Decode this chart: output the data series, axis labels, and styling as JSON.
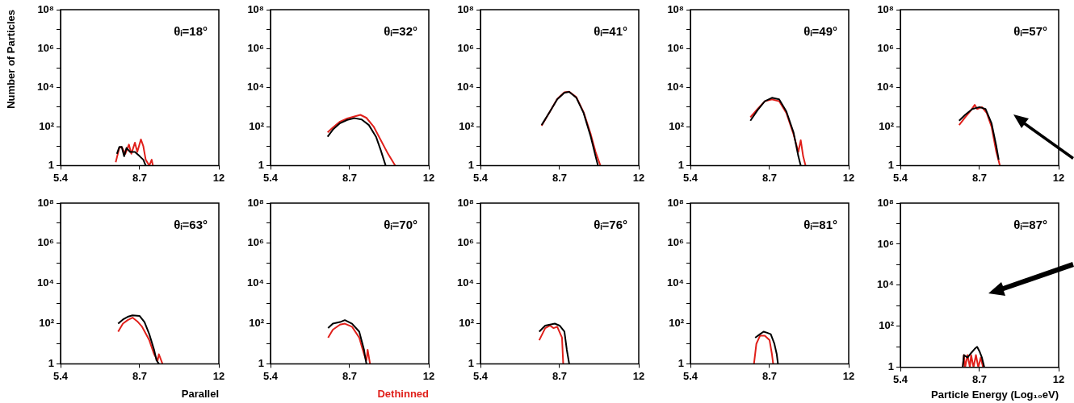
{
  "chart_data": [
    {
      "type": "line",
      "ylabel": "Number of Particles",
      "annotations": [
        "θᵢ=18°"
      ],
      "log": "y",
      "xlim": [
        5.4,
        12
      ],
      "xticks": [
        5.4,
        8.7,
        12
      ],
      "ylim": [
        1,
        100000000
      ],
      "yticks": [
        {
          "value": 1,
          "label": "1"
        },
        {
          "value": 10,
          "label": null
        },
        {
          "value": 100,
          "label": "10²"
        },
        {
          "value": 1000,
          "label": null
        },
        {
          "value": 10000,
          "label": "10⁴"
        },
        {
          "value": 100000,
          "label": null
        },
        {
          "value": 1000000,
          "label": "10⁶"
        },
        {
          "value": 10000000,
          "label": null
        },
        {
          "value": 100000000,
          "label": "10⁸"
        }
      ],
      "series": [
        {
          "color": "#000000",
          "x": [
            7.75,
            7.85,
            7.95,
            8.05,
            8.15,
            8.3,
            8.5,
            8.7,
            8.85,
            8.95
          ],
          "values": [
            4,
            9,
            9,
            3,
            8,
            5,
            5,
            3,
            2,
            1
          ]
        },
        {
          "color": "#e0201b",
          "x": [
            7.7,
            7.85,
            7.95,
            8.1,
            8.25,
            8.35,
            8.5,
            8.6,
            8.75,
            8.85,
            8.95,
            9.1,
            9.2,
            9.25
          ],
          "values": [
            1.5,
            8,
            9,
            4,
            12,
            4,
            15,
            5,
            22,
            10,
            2,
            1,
            2,
            1
          ]
        }
      ]
    },
    {
      "type": "line",
      "annotations": [
        "θᵢ=32°"
      ],
      "log": "y",
      "xlim": [
        5.4,
        12
      ],
      "xticks": [
        5.4,
        8.7,
        12
      ],
      "ylim": [
        1,
        100000000
      ],
      "yticks": [
        {
          "value": 1,
          "label": "1"
        },
        {
          "value": 10,
          "label": null
        },
        {
          "value": 100,
          "label": "10²"
        },
        {
          "value": 1000,
          "label": null
        },
        {
          "value": 10000,
          "label": "10⁴"
        },
        {
          "value": 100000,
          "label": null
        },
        {
          "value": 1000000,
          "label": "10⁶"
        },
        {
          "value": 10000000,
          "label": null
        },
        {
          "value": 100000000,
          "label": "10⁸"
        }
      ],
      "series": [
        {
          "color": "#000000",
          "x": [
            7.78,
            8.0,
            8.3,
            8.6,
            8.9,
            9.2,
            9.5,
            9.8,
            10.0,
            10.2
          ],
          "values": [
            30,
            70,
            150,
            220,
            270,
            230,
            120,
            30,
            6,
            1
          ]
        },
        {
          "color": "#e0201b",
          "x": [
            7.78,
            8.0,
            8.3,
            8.6,
            8.9,
            9.15,
            9.4,
            9.7,
            10.0,
            10.3,
            10.6
          ],
          "values": [
            50,
            90,
            180,
            260,
            330,
            400,
            280,
            100,
            20,
            4,
            1
          ]
        }
      ]
    },
    {
      "type": "line",
      "annotations": [
        "θᵢ=41°"
      ],
      "log": "y",
      "xlim": [
        5.4,
        12
      ],
      "xticks": [
        5.4,
        8.7,
        12
      ],
      "ylim": [
        1,
        100000000
      ],
      "yticks": [
        {
          "value": 1,
          "label": "1"
        },
        {
          "value": 10,
          "label": null
        },
        {
          "value": 100,
          "label": "10²"
        },
        {
          "value": 1000,
          "label": null
        },
        {
          "value": 10000,
          "label": "10⁴"
        },
        {
          "value": 100000,
          "label": null
        },
        {
          "value": 1000000,
          "label": "10⁶"
        },
        {
          "value": 10000000,
          "label": null
        },
        {
          "value": 100000000,
          "label": "10⁸"
        }
      ],
      "series": [
        {
          "color": "#000000",
          "x": [
            7.95,
            8.3,
            8.6,
            8.9,
            9.1,
            9.4,
            9.7,
            10.0,
            10.2,
            10.3
          ],
          "values": [
            120,
            600,
            2500,
            5500,
            6000,
            3000,
            500,
            30,
            3,
            1
          ]
        },
        {
          "color": "#e0201b",
          "x": [
            7.95,
            8.3,
            8.6,
            8.9,
            9.1,
            9.4,
            9.7,
            10.0,
            10.2,
            10.4
          ],
          "values": [
            110,
            600,
            2600,
            5800,
            6200,
            3200,
            550,
            40,
            5,
            1
          ]
        }
      ]
    },
    {
      "type": "line",
      "annotations": [
        "θᵢ=49°"
      ],
      "log": "y",
      "xlim": [
        5.4,
        12
      ],
      "xticks": [
        5.4,
        8.7,
        12
      ],
      "ylim": [
        1,
        100000000
      ],
      "yticks": [
        {
          "value": 1,
          "label": "1"
        },
        {
          "value": 10,
          "label": null
        },
        {
          "value": 100,
          "label": "10²"
        },
        {
          "value": 1000,
          "label": null
        },
        {
          "value": 10000,
          "label": "10⁴"
        },
        {
          "value": 100000,
          "label": null
        },
        {
          "value": 1000000,
          "label": "10⁶"
        },
        {
          "value": 10000000,
          "label": null
        },
        {
          "value": 100000000,
          "label": "10⁸"
        }
      ],
      "series": [
        {
          "color": "#000000",
          "x": [
            7.9,
            8.2,
            8.5,
            8.8,
            9.1,
            9.4,
            9.7,
            9.9,
            10.0
          ],
          "values": [
            200,
            700,
            2000,
            3000,
            2500,
            600,
            50,
            3,
            1
          ]
        },
        {
          "color": "#e0201b",
          "x": [
            7.9,
            8.2,
            8.5,
            8.8,
            9.1,
            9.4,
            9.7,
            9.9,
            10.0,
            10.1,
            10.2
          ],
          "values": [
            300,
            800,
            2000,
            2500,
            2000,
            500,
            40,
            5,
            20,
            3,
            1
          ]
        }
      ]
    },
    {
      "type": "line",
      "annotations": [
        "θᵢ=57°"
      ],
      "log": "y",
      "xlim": [
        5.4,
        12
      ],
      "xticks": [
        5.4,
        8.7,
        12
      ],
      "ylim": [
        1,
        100000000
      ],
      "yticks": [
        {
          "value": 1,
          "label": "1"
        },
        {
          "value": 10,
          "label": null
        },
        {
          "value": 100,
          "label": "10²"
        },
        {
          "value": 1000,
          "label": null
        },
        {
          "value": 10000,
          "label": "10⁴"
        },
        {
          "value": 100000,
          "label": null
        },
        {
          "value": 1000000,
          "label": "10⁶"
        },
        {
          "value": 10000000,
          "label": null
        },
        {
          "value": 100000000,
          "label": "10⁸"
        }
      ],
      "series": [
        {
          "color": "#000000",
          "x": [
            7.85,
            8.1,
            8.4,
            8.7,
            8.95,
            9.2,
            9.4,
            9.5
          ],
          "values": [
            200,
            400,
            800,
            1000,
            800,
            150,
            10,
            2
          ]
        },
        {
          "color": "#e0201b",
          "x": [
            7.85,
            8.1,
            8.35,
            8.5,
            8.6,
            8.8,
            9.0,
            9.2,
            9.4,
            9.55
          ],
          "values": [
            120,
            300,
            700,
            1300,
            800,
            1000,
            500,
            100,
            5,
            1
          ]
        }
      ]
    },
    {
      "type": "line",
      "annotations": [
        "θᵢ=63°"
      ],
      "legend": "bottom right",
      "log": "y",
      "xlim": [
        5.4,
        12
      ],
      "xticks": [
        5.4,
        8.7,
        12
      ],
      "ylim": [
        1,
        100000000
      ],
      "yticks": [
        {
          "value": 1,
          "label": "1"
        },
        {
          "value": 10,
          "label": null
        },
        {
          "value": 100,
          "label": "10²"
        },
        {
          "value": 1000,
          "label": null
        },
        {
          "value": 10000,
          "label": "10⁴"
        },
        {
          "value": 100000,
          "label": null
        },
        {
          "value": 1000000,
          "label": "10⁶"
        },
        {
          "value": 10000000,
          "label": null
        },
        {
          "value": 100000000,
          "label": "10⁸"
        }
      ],
      "series": [
        {
          "name": "Parallel",
          "color": "#000000",
          "x": [
            7.8,
            8.0,
            8.2,
            8.4,
            8.7,
            8.9,
            9.1,
            9.3,
            9.4,
            9.5
          ],
          "values": [
            100,
            160,
            220,
            260,
            240,
            120,
            30,
            5,
            1.5,
            1
          ]
        },
        {
          "color": "#e0201b",
          "x": [
            7.8,
            8.0,
            8.2,
            8.4,
            8.6,
            8.8,
            9.1,
            9.3,
            9.45,
            9.5,
            9.65
          ],
          "values": [
            40,
            100,
            150,
            200,
            130,
            70,
            15,
            3,
            1.5,
            3,
            1
          ]
        }
      ]
    },
    {
      "type": "line",
      "annotations": [
        "θᵢ=70°"
      ],
      "legend": "bottom right",
      "log": "y",
      "xlim": [
        5.4,
        12
      ],
      "xticks": [
        5.4,
        8.7,
        12
      ],
      "ylim": [
        1,
        100000000
      ],
      "yticks": [
        {
          "value": 1,
          "label": "1"
        },
        {
          "value": 10,
          "label": null
        },
        {
          "value": 100,
          "label": "10²"
        },
        {
          "value": 1000,
          "label": null
        },
        {
          "value": 10000,
          "label": "10⁴"
        },
        {
          "value": 100000,
          "label": null
        },
        {
          "value": 1000000,
          "label": "10⁶"
        },
        {
          "value": 10000000,
          "label": null
        },
        {
          "value": 100000000,
          "label": "10⁸"
        }
      ],
      "series": [
        {
          "color": "#000000",
          "x": [
            7.8,
            8.0,
            8.3,
            8.5,
            8.8,
            9.1,
            9.3,
            9.35,
            9.4
          ],
          "values": [
            60,
            100,
            120,
            150,
            100,
            40,
            5,
            2,
            1
          ]
        },
        {
          "name": "Dethinned",
          "color": "#e0201b",
          "x": [
            7.8,
            8.0,
            8.3,
            8.5,
            8.8,
            9.1,
            9.3,
            9.4,
            9.45,
            9.55
          ],
          "values": [
            20,
            50,
            90,
            100,
            70,
            20,
            3,
            1.5,
            5,
            1
          ]
        }
      ]
    },
    {
      "type": "line",
      "annotations": [
        "θᵢ=76°"
      ],
      "log": "y",
      "xlim": [
        5.4,
        12
      ],
      "xticks": [
        5.4,
        8.7,
        12
      ],
      "ylim": [
        1,
        100000000
      ],
      "yticks": [
        {
          "value": 1,
          "label": "1"
        },
        {
          "value": 10,
          "label": null
        },
        {
          "value": 100,
          "label": "10²"
        },
        {
          "value": 1000,
          "label": null
        },
        {
          "value": 10000,
          "label": "10⁴"
        },
        {
          "value": 100000,
          "label": null
        },
        {
          "value": 1000000,
          "label": "10⁶"
        },
        {
          "value": 10000000,
          "label": null
        },
        {
          "value": 100000000,
          "label": "10⁸"
        }
      ],
      "series": [
        {
          "color": "#000000",
          "x": [
            7.85,
            8.1,
            8.3,
            8.5,
            8.7,
            8.9,
            9.0,
            9.1
          ],
          "values": [
            40,
            80,
            90,
            100,
            80,
            40,
            5,
            1
          ]
        },
        {
          "color": "#e0201b",
          "x": [
            7.85,
            8.1,
            8.3,
            8.45,
            8.6,
            8.8,
            8.85
          ],
          "values": [
            15,
            60,
            80,
            60,
            70,
            20,
            1
          ]
        }
      ]
    },
    {
      "type": "line",
      "annotations": [
        "θᵢ=81°"
      ],
      "log": "y",
      "xlim": [
        5.4,
        12
      ],
      "xticks": [
        5.4,
        8.7,
        12
      ],
      "ylim": [
        1,
        100000000
      ],
      "yticks": [
        {
          "value": 1,
          "label": "1"
        },
        {
          "value": 10,
          "label": null
        },
        {
          "value": 100,
          "label": "10²"
        },
        {
          "value": 1000,
          "label": null
        },
        {
          "value": 10000,
          "label": "10⁴"
        },
        {
          "value": 100000,
          "label": null
        },
        {
          "value": 1000000,
          "label": "10⁶"
        },
        {
          "value": 10000000,
          "label": null
        },
        {
          "value": 100000000,
          "label": "10⁸"
        }
      ],
      "series": [
        {
          "color": "#000000",
          "x": [
            8.1,
            8.3,
            8.45,
            8.6,
            8.75,
            8.9,
            9.0,
            9.05
          ],
          "values": [
            20,
            30,
            40,
            35,
            30,
            10,
            3,
            1
          ]
        },
        {
          "color": "#e0201b",
          "x": [
            8.05,
            8.15,
            8.3,
            8.5,
            8.7,
            8.8,
            8.85
          ],
          "values": [
            1,
            10,
            25,
            25,
            15,
            3,
            1
          ]
        }
      ]
    },
    {
      "type": "line",
      "xlabel": "Particle Energy (Log₁₀eV)",
      "annotations": [
        "θᵢ=87°"
      ],
      "log": "y",
      "xlim": [
        5.4,
        12
      ],
      "xticks": [
        5.4,
        8.7,
        12
      ],
      "ylim": [
        1,
        100000000
      ],
      "yticks": [
        {
          "value": 1,
          "label": "1"
        },
        {
          "value": 10,
          "label": null
        },
        {
          "value": 100,
          "label": "10²"
        },
        {
          "value": 1000,
          "label": null
        },
        {
          "value": 10000,
          "label": "10⁴"
        },
        {
          "value": 100000,
          "label": null
        },
        {
          "value": 1000000,
          "label": "10⁶"
        },
        {
          "value": 10000000,
          "label": null
        },
        {
          "value": 100000000,
          "label": "10⁸"
        }
      ],
      "series": [
        {
          "color": "#000000",
          "x": [
            8.0,
            8.05,
            8.2,
            8.35,
            8.5,
            8.6,
            8.7,
            8.8,
            8.9
          ],
          "values": [
            1,
            4,
            3,
            5,
            8,
            10,
            6,
            3,
            1
          ]
        },
        {
          "color": "#e0201b",
          "x": [
            8.0,
            8.05,
            8.1,
            8.2,
            8.3,
            8.35,
            8.45,
            8.55,
            8.65,
            8.75,
            8.85
          ],
          "values": [
            1,
            4,
            1,
            4,
            1,
            4,
            1,
            4,
            1,
            3,
            1
          ]
        }
      ]
    }
  ]
}
